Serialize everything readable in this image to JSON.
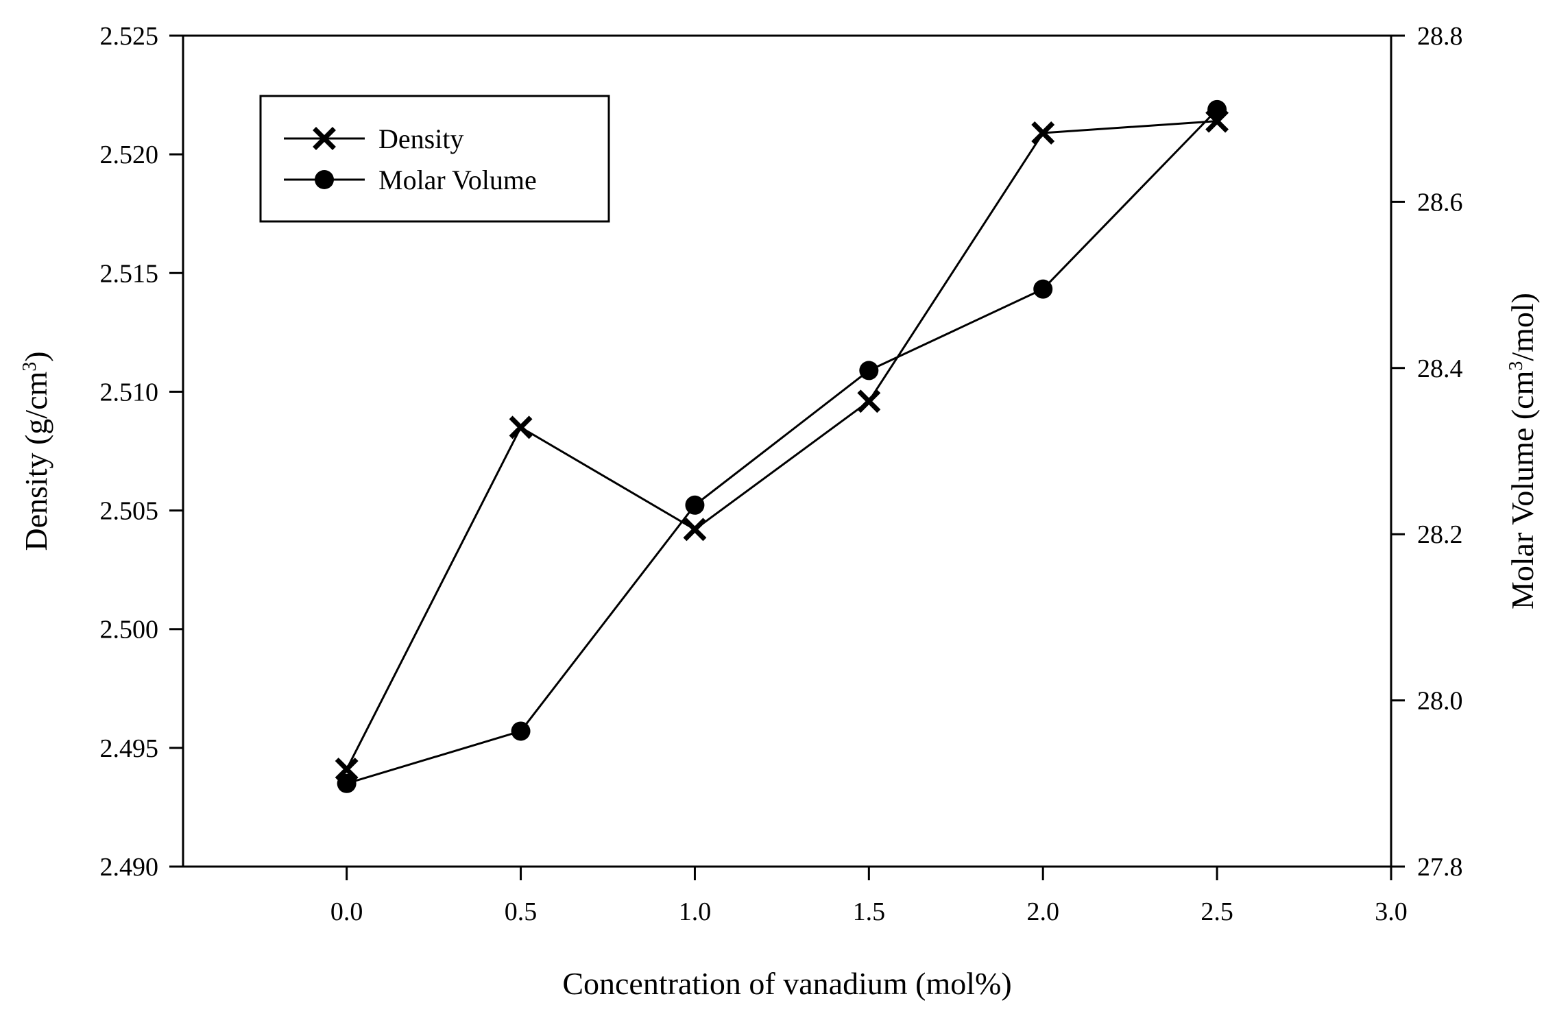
{
  "chart_data": {
    "type": "line",
    "title": "",
    "x": [
      0.0,
      0.5,
      1.0,
      1.5,
      2.0,
      2.5
    ],
    "xlim": [
      -0.47,
      3.0
    ],
    "xticks": [
      "0.0",
      "0.5",
      "1.0",
      "1.5",
      "2.0",
      "2.5",
      "3.0"
    ],
    "xlabel": "Concentration of vanadium (mol%)",
    "y_left": {
      "label_main": "Density (g/cm",
      "label_sup": "3",
      "label_end": ")",
      "lim": [
        2.49,
        2.525
      ],
      "ticks": [
        "2.490",
        "2.495",
        "2.500",
        "2.505",
        "2.510",
        "2.515",
        "2.520",
        "2.525"
      ]
    },
    "y_right": {
      "label_main": "Molar Volume (cm",
      "label_sup": "3",
      "label_end": "/mol)",
      "lim": [
        27.8,
        28.8
      ],
      "ticks": [
        "27.8",
        "28.0",
        "28.2",
        "28.4",
        "28.6",
        "28.8"
      ]
    },
    "series": [
      {
        "name": "Density",
        "axis": "left",
        "marker": "x",
        "values": [
          2.4941,
          2.5085,
          2.5042,
          2.5096,
          2.5209,
          2.5214
        ]
      },
      {
        "name": "Molar Volume",
        "axis": "right",
        "marker": "circle",
        "values": [
          27.9,
          27.963,
          28.235,
          28.397,
          28.495,
          28.711
        ]
      }
    ],
    "legend": {
      "position": "top-left"
    },
    "colors": {
      "line": "#000000",
      "background": "#ffffff"
    }
  }
}
